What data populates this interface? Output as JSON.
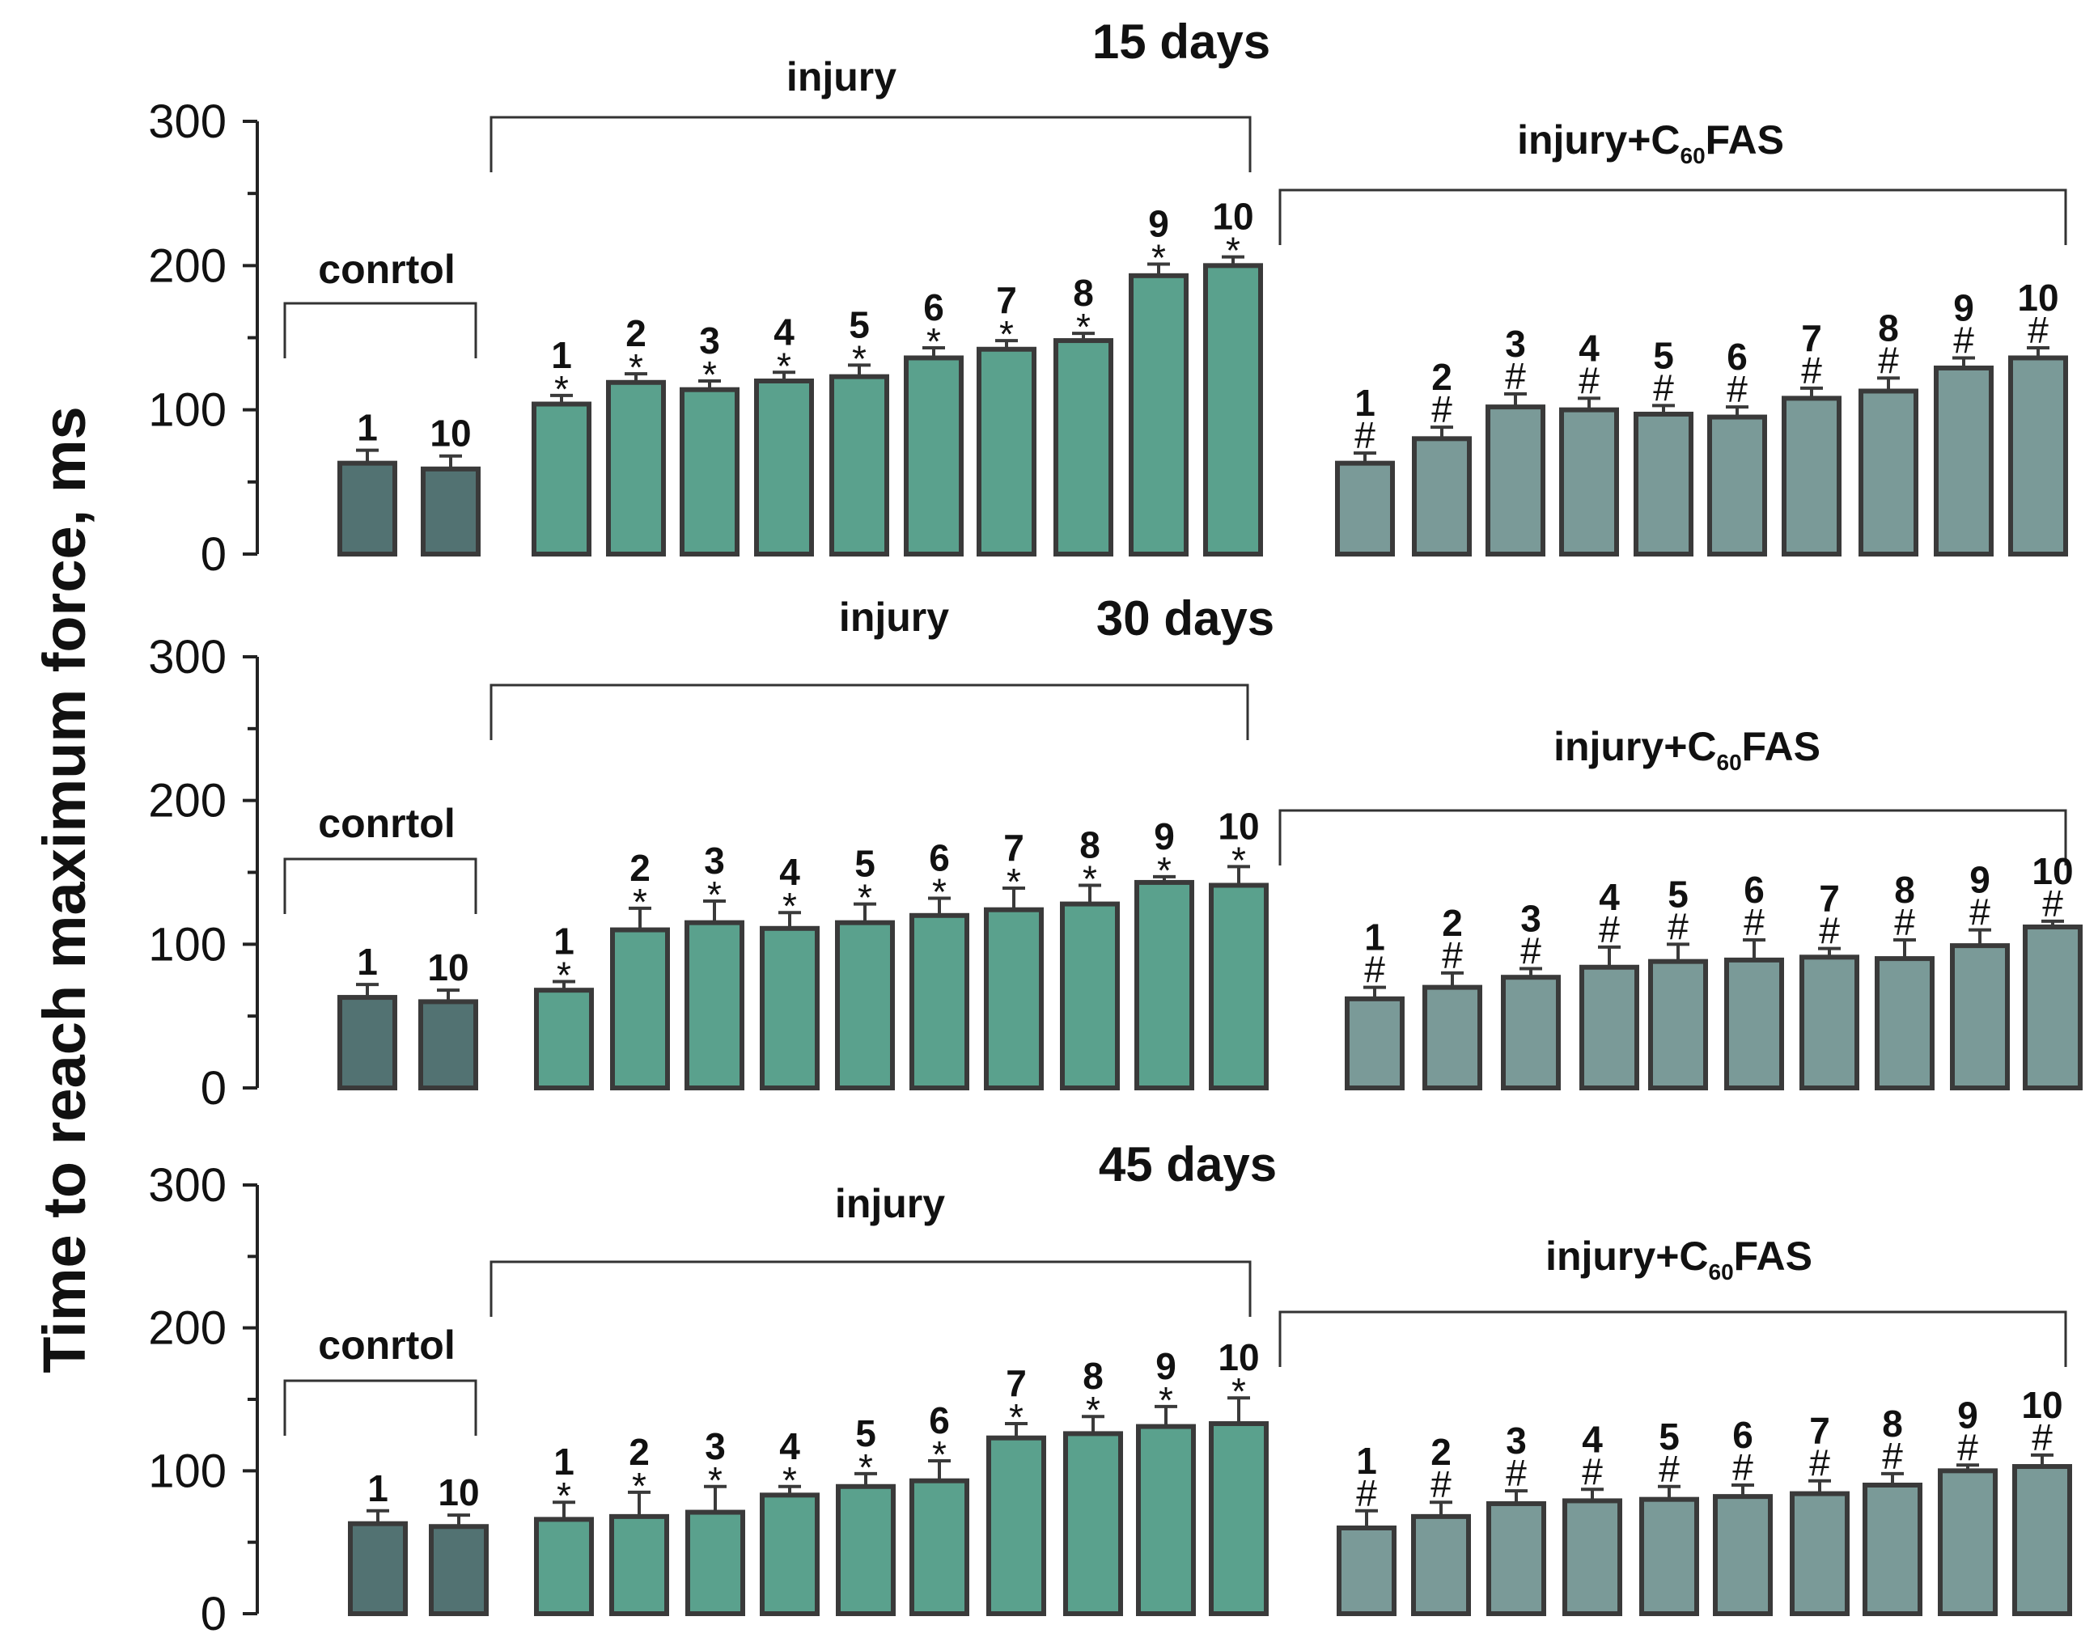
{
  "chart_data": {
    "type": "bar",
    "ylabel": "Time to reach maximum force, ms",
    "ylim": [
      0,
      300
    ],
    "yticks": [
      "0",
      "100",
      "200",
      "300"
    ],
    "colors": {
      "control": "#527272",
      "injury": "#5aa18d",
      "injury_c60fas": "#7a9a98",
      "edge": "#3a3a3a"
    },
    "panels": [
      {
        "title": "15 days",
        "groups": [
          {
            "label": "conrtol",
            "label_parts": [
              "conrtol"
            ],
            "fill": "control",
            "categories": [
              "1",
              "10"
            ],
            "values": [
              63,
              59
            ],
            "errors": [
              9,
              9
            ],
            "marks": [
              "",
              ""
            ]
          },
          {
            "label": "injury",
            "label_parts": [
              "injury"
            ],
            "fill": "injury",
            "categories": [
              "1",
              "2",
              "3",
              "4",
              "5",
              "6",
              "7",
              "8",
              "9",
              "10"
            ],
            "values": [
              104,
              119,
              114,
              120,
              123,
              136,
              142,
              148,
              193,
              200
            ],
            "errors": [
              6,
              6,
              6,
              6,
              8,
              7,
              6,
              5,
              8,
              6
            ],
            "marks": [
              "*",
              "*",
              "*",
              "*",
              "*",
              "*",
              "*",
              "*",
              "*",
              "*"
            ]
          },
          {
            "label": "injury+C60FAS",
            "label_parts": [
              "injury+C",
              "60",
              "FAS"
            ],
            "fill": "injury_c60fas",
            "categories": [
              "1",
              "2",
              "3",
              "4",
              "5",
              "6",
              "7",
              "8",
              "9",
              "10"
            ],
            "values": [
              63,
              80,
              102,
              100,
              97,
              95,
              108,
              113,
              129,
              136
            ],
            "errors": [
              7,
              8,
              9,
              8,
              6,
              7,
              7,
              9,
              7,
              7
            ],
            "marks": [
              "#",
              "#",
              "#",
              "#",
              "#",
              "#",
              "#",
              "#",
              "#",
              "#"
            ]
          }
        ]
      },
      {
        "title": "30 days",
        "groups": [
          {
            "label": "conrtol",
            "label_parts": [
              "conrtol"
            ],
            "fill": "control",
            "categories": [
              "1",
              "10"
            ],
            "values": [
              63,
              60
            ],
            "errors": [
              9,
              8
            ],
            "marks": [
              "",
              ""
            ]
          },
          {
            "label": "injury",
            "label_parts": [
              "injury"
            ],
            "fill": "injury",
            "categories": [
              "1",
              "2",
              "3",
              "4",
              "5",
              "6",
              "7",
              "8",
              "9",
              "10"
            ],
            "values": [
              68,
              110,
              115,
              111,
              115,
              120,
              124,
              128,
              143,
              141
            ],
            "errors": [
              6,
              15,
              15,
              11,
              13,
              12,
              15,
              13,
              4,
              13
            ],
            "marks": [
              "*",
              "*",
              "*",
              "*",
              "*",
              "*",
              "*",
              "*",
              "*",
              "*"
            ]
          },
          {
            "label": "injury+C60FAS",
            "label_parts": [
              "injury+C",
              "60",
              "FAS"
            ],
            "fill": "injury_c60fas",
            "categories": [
              "1",
              "2",
              "3",
              "4",
              "5",
              "6",
              "7",
              "8",
              "9",
              "10"
            ],
            "values": [
              62,
              70,
              77,
              84,
              88,
              89,
              91,
              90,
              99,
              112
            ],
            "errors": [
              8,
              10,
              6,
              14,
              12,
              14,
              6,
              13,
              11,
              4
            ],
            "marks": [
              "#",
              "#",
              "#",
              "#",
              "#",
              "#",
              "#",
              "#",
              "#",
              "#"
            ]
          }
        ]
      },
      {
        "title": "45 days",
        "groups": [
          {
            "label": "conrtol",
            "label_parts": [
              "conrtol"
            ],
            "fill": "control",
            "categories": [
              "1",
              "10"
            ],
            "values": [
              63,
              61
            ],
            "errors": [
              9,
              8
            ],
            "marks": [
              "",
              ""
            ]
          },
          {
            "label": "injury",
            "label_parts": [
              "injury"
            ],
            "fill": "injury",
            "categories": [
              "1",
              "2",
              "3",
              "4",
              "5",
              "6",
              "7",
              "8",
              "9",
              "10"
            ],
            "values": [
              66,
              68,
              71,
              83,
              89,
              93,
              123,
              126,
              131,
              133
            ],
            "errors": [
              12,
              17,
              18,
              6,
              9,
              14,
              10,
              12,
              14,
              18
            ],
            "marks": [
              "*",
              "*",
              "*",
              "*",
              "*",
              "*",
              "*",
              "*",
              "*",
              "*"
            ]
          },
          {
            "label": "injury+C60FAS",
            "label_parts": [
              "injury+C",
              "60",
              "FAS"
            ],
            "fill": "injury_c60fas",
            "categories": [
              "1",
              "2",
              "3",
              "4",
              "5",
              "6",
              "7",
              "8",
              "9",
              "10"
            ],
            "values": [
              60,
              68,
              77,
              79,
              80,
              82,
              84,
              90,
              100,
              103
            ],
            "errors": [
              12,
              10,
              9,
              8,
              9,
              8,
              9,
              8,
              4,
              8
            ],
            "marks": [
              "#",
              "#",
              "#",
              "#",
              "#",
              "#",
              "#",
              "#",
              "#",
              "#"
            ]
          }
        ]
      }
    ]
  }
}
